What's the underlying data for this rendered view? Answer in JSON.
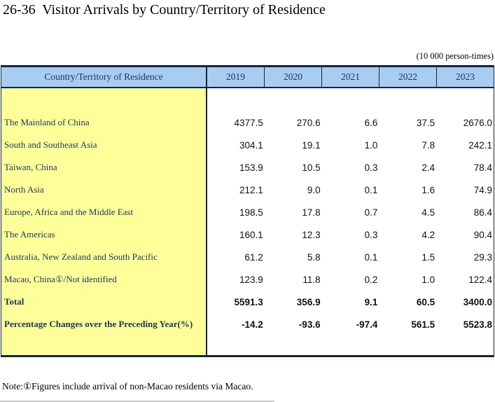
{
  "title": "26-36  Visitor Arrivals by Country/Territory of Residence",
  "unit_note": "(10 000 person-times)",
  "table": {
    "header": {
      "label": "Country/Territory of Residence",
      "years": [
        "2019",
        "2020",
        "2021",
        "2022",
        "2023"
      ]
    },
    "rows": [
      {
        "label": "The Mainland of China",
        "values": [
          "4377.5",
          "270.6",
          "6.6",
          "37.5",
          "2676.0"
        ],
        "bold": false
      },
      {
        "label": "South and Southeast Asia",
        "values": [
          "304.1",
          "19.1",
          "1.0",
          "7.8",
          "242.1"
        ],
        "bold": false
      },
      {
        "label": "Taiwan, China",
        "values": [
          "153.9",
          "10.5",
          "0.3",
          "2.4",
          "78.4"
        ],
        "bold": false
      },
      {
        "label": "North Asia",
        "values": [
          "212.1",
          "9.0",
          "0.1",
          "1.6",
          "74.9"
        ],
        "bold": false
      },
      {
        "label": "Europe, Africa and the Middle East",
        "values": [
          "198.5",
          "17.8",
          "0.7",
          "4.5",
          "86.4"
        ],
        "bold": false
      },
      {
        "label": "The Americas",
        "values": [
          "160.1",
          "12.3",
          "0.3",
          "4.2",
          "90.4"
        ],
        "bold": false
      },
      {
        "label": "Australia, New Zealand and South Pacific",
        "values": [
          "61.2",
          "5.8",
          "0.1",
          "1.5",
          "29.3"
        ],
        "bold": false
      },
      {
        "label": "Macao, China①/Not identified",
        "values": [
          "123.9",
          "11.8",
          "0.2",
          "1.0",
          "122.4"
        ],
        "bold": false
      },
      {
        "label": "Total",
        "values": [
          "5591.3",
          "356.9",
          "9.1",
          "60.5",
          "3400.0"
        ],
        "bold": true
      },
      {
        "label": "Percentage Changes over the Preceding Year(%)",
        "values": [
          "-14.2",
          "-93.6",
          "-97.4",
          "561.5",
          "5523.8"
        ],
        "bold": true
      }
    ]
  },
  "note": "Note:①Figures include arrival of non-Macao residents via Macao.",
  "colors": {
    "header_bg": "#A9CDF1",
    "label_bg": "#FFFF99",
    "border": "#10253F",
    "header_text": "#17365D",
    "label_text": "#17365D"
  }
}
